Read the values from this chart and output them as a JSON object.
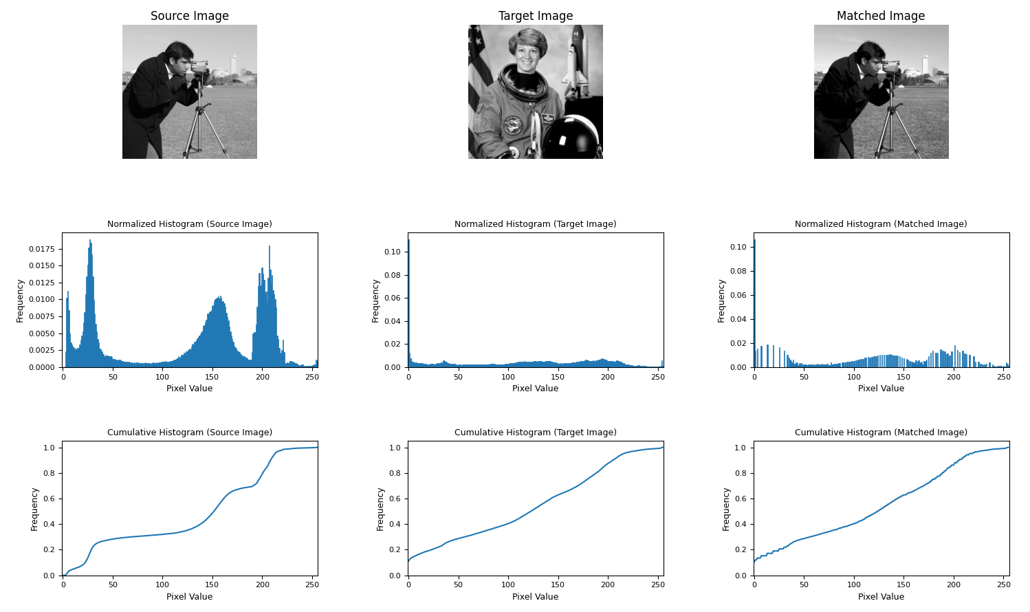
{
  "titles_row1": [
    "Source Image",
    "Target Image",
    "Matched Image"
  ],
  "titles_hist": [
    "Normalized Histogram (Source Image)",
    "Normalized Histogram (Target Image)",
    "Normalized Histogram (Matched Image)"
  ],
  "titles_cumhist": [
    "Cumulative Histogram (Source Image)",
    "Cumulative Histogram (Target Image)",
    "Cumulative Histogram (Matched Image)"
  ],
  "xlabel": "Pixel Value",
  "ylabel_hist": "Frequency",
  "ylabel_cumhist": "Frequency",
  "bar_color": "#1f77b4",
  "line_color": "#1f77b4",
  "figsize": [
    14.98,
    8.9
  ],
  "dpi": 100
}
